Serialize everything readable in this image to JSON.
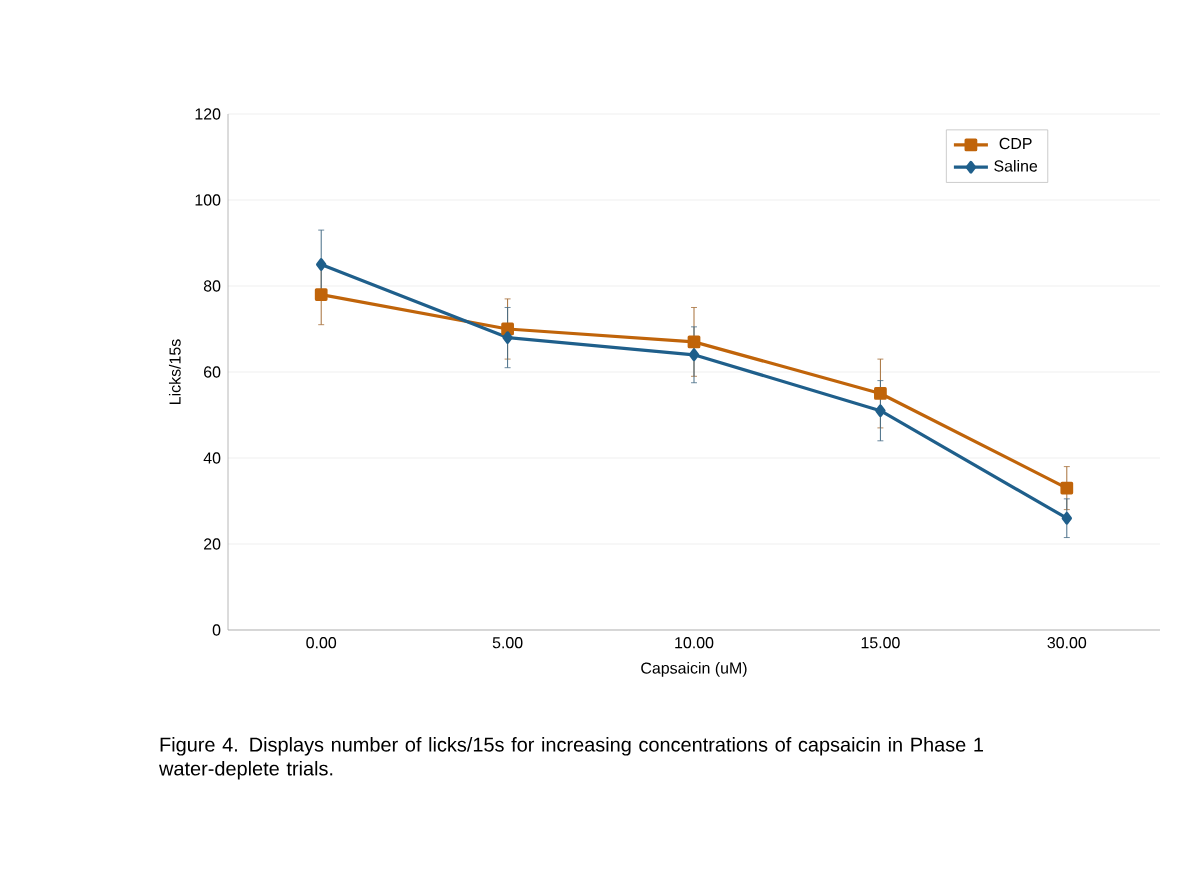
{
  "chart_data": {
    "type": "line",
    "xlabel": "Capsaicin (uM)",
    "ylabel": "Licks/15s",
    "categories": [
      "0.00",
      "5.00",
      "10.00",
      "15.00",
      "30.00"
    ],
    "series": [
      {
        "name": "CDP",
        "color": "#c0640a",
        "marker": "square",
        "values": [
          78,
          70,
          67,
          55,
          33
        ],
        "errors": [
          7,
          7,
          8,
          8,
          5
        ]
      },
      {
        "name": "Saline",
        "color": "#1f5f8b",
        "marker": "diamond",
        "values": [
          85,
          68,
          64,
          51,
          26
        ],
        "errors": [
          8,
          7,
          6.5,
          7,
          4.5
        ]
      }
    ],
    "ylim": [
      0,
      120
    ],
    "yticks": [
      0,
      20,
      40,
      60,
      80,
      100,
      120
    ],
    "grid": "y",
    "legend": "top right",
    "annotations": [
      "Figure 4. Displays number of licks/15s for increasing concentrations of capsaicin in Phase 1 water-deplete trials."
    ]
  }
}
